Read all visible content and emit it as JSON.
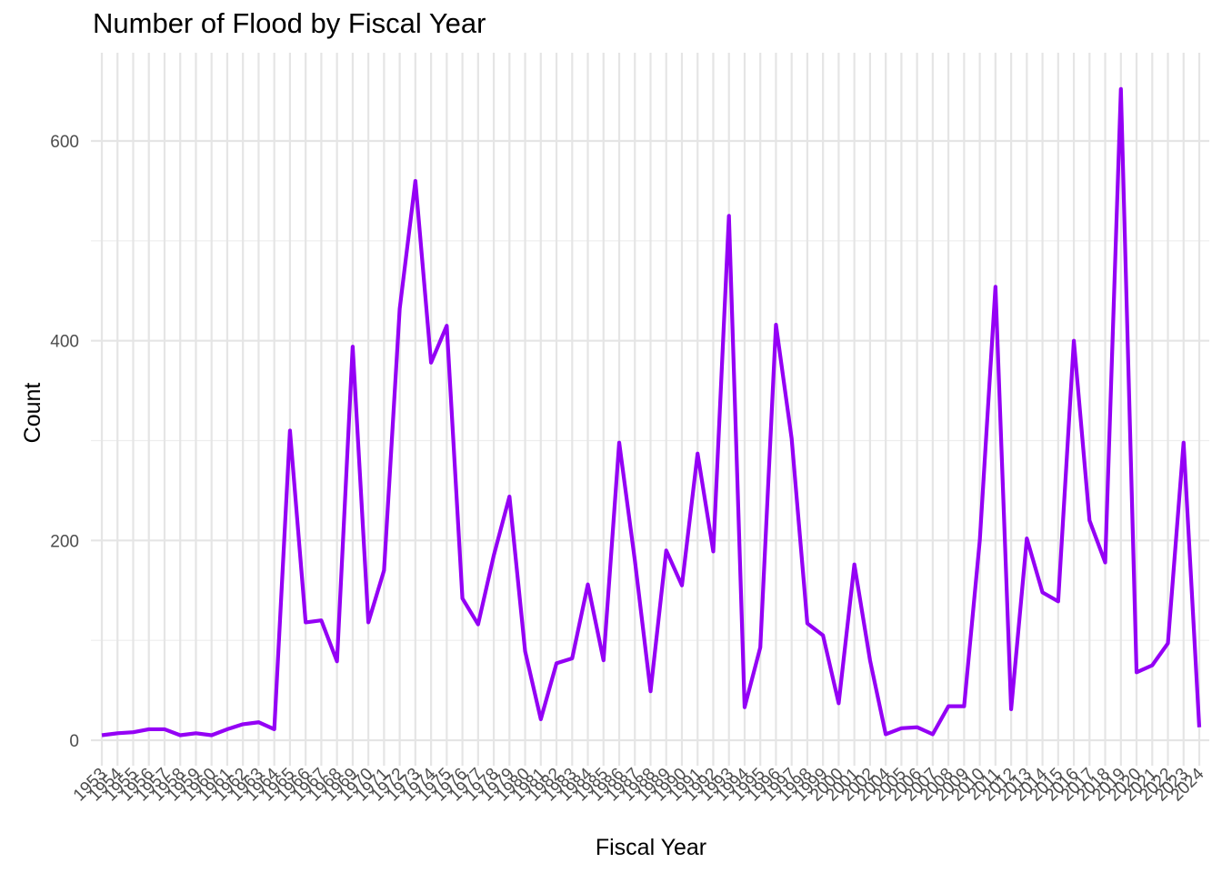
{
  "chart_data": {
    "type": "line",
    "title": "Number of Flood by Fiscal Year",
    "xlabel": "Fiscal Year",
    "ylabel": "Count",
    "ylim": [
      -30,
      680
    ],
    "y_ticks": [
      0,
      200,
      400,
      600
    ],
    "grid": true,
    "line_color": "#9400F5",
    "x": [
      "1953",
      "1954",
      "1955",
      "1956",
      "1957",
      "1958",
      "1959",
      "1960",
      "1961",
      "1962",
      "1963",
      "1964",
      "1965",
      "1966",
      "1967",
      "1968",
      "1969",
      "1970",
      "1971",
      "1972",
      "1973",
      "1974",
      "1975",
      "1976",
      "1977",
      "1978",
      "1979",
      "1980",
      "1981",
      "1982",
      "1983",
      "1984",
      "1985",
      "1986",
      "1987",
      "1988",
      "1989",
      "1990",
      "1991",
      "1992",
      "1993",
      "1994",
      "1995",
      "1996",
      "1997",
      "1998",
      "1999",
      "2000",
      "2001",
      "2002",
      "2004",
      "2005",
      "2006",
      "2007",
      "2008",
      "2009",
      "2010",
      "2011",
      "2012",
      "2013",
      "2014",
      "2015",
      "2016",
      "2017",
      "2018",
      "2019",
      "2020",
      "2021",
      "2022",
      "2023",
      "2024"
    ],
    "values": [
      5,
      7,
      8,
      11,
      11,
      5,
      7,
      5,
      11,
      16,
      18,
      11,
      310,
      118,
      120,
      79,
      394,
      118,
      170,
      432,
      560,
      378,
      415,
      142,
      116,
      185,
      244,
      89,
      21,
      77,
      82,
      156,
      80,
      298,
      180,
      49,
      190,
      155,
      287,
      189,
      525,
      33,
      93,
      416,
      302,
      117,
      105,
      37,
      176,
      80,
      6,
      12,
      13,
      6,
      34,
      34,
      200,
      454,
      31,
      202,
      148,
      139,
      400,
      220,
      178,
      652,
      68,
      75,
      97,
      298,
      13
    ]
  }
}
